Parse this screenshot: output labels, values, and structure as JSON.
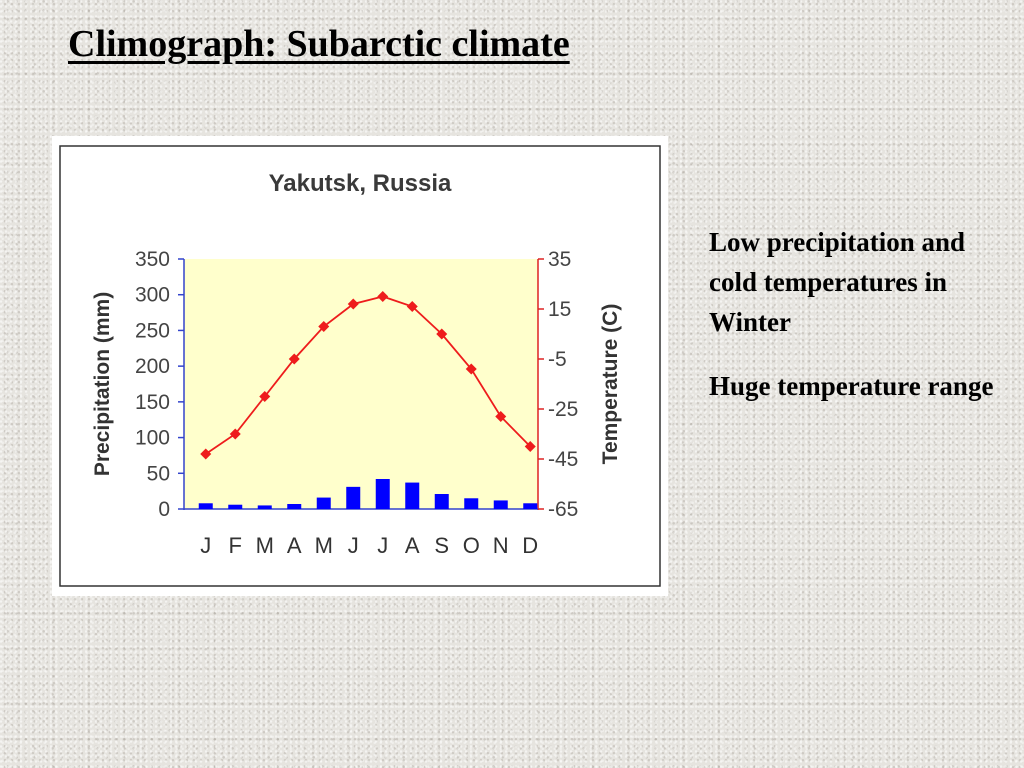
{
  "slide": {
    "title": "Climograph:  Subarctic climate",
    "notes": [
      "Low precipitation and cold temperatures in Winter",
      "Huge temperature range"
    ]
  },
  "chart_data": {
    "type": "bar",
    "title": "Yakutsk, Russia",
    "categories": [
      "J",
      "F",
      "M",
      "A",
      "M",
      "J",
      "J",
      "A",
      "S",
      "O",
      "N",
      "D"
    ],
    "series": [
      {
        "name": "",
        "kind": "bar",
        "axis": "left",
        "values": [
          8,
          6,
          5,
          7,
          16,
          31,
          42,
          37,
          21,
          15,
          12,
          8
        ]
      },
      {
        "name": "",
        "kind": "line",
        "axis": "right",
        "values": [
          -43,
          -35,
          -20,
          -5,
          8,
          17,
          20,
          16,
          5,
          -9,
          -28,
          -40
        ]
      }
    ],
    "ylabel": "Precipitation (mm)",
    "ylim": [
      0,
      350
    ],
    "yticks": [
      0,
      50,
      100,
      150,
      200,
      250,
      300,
      350
    ],
    "y2label": "Temperature (C)",
    "y2lim": [
      -65,
      35
    ],
    "y2ticks": [
      -65,
      -45,
      -25,
      -5,
      15,
      35
    ],
    "colors": {
      "bar": "#0000ff",
      "line": "#ee1c1c",
      "plot_bg": "#ffffcc"
    },
    "grid": false
  }
}
